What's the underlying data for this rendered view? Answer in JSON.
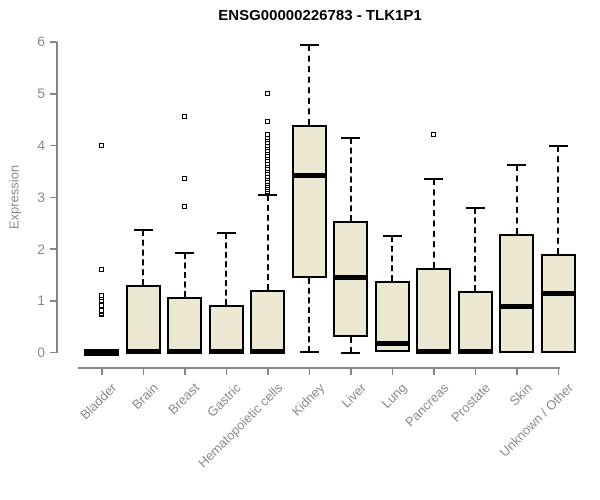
{
  "chart_data": {
    "type": "boxplot",
    "title": "ENSG00000226783 - TLK1P1",
    "ylabel": "Expression",
    "xlabel": "",
    "ylim": [
      0,
      6
    ],
    "yticks": [
      0,
      1,
      2,
      3,
      4,
      5,
      6
    ],
    "grid": false,
    "legend": "none",
    "categories": [
      "Bladder",
      "Brain",
      "Breast",
      "Gastric",
      "Hematopoietic cells",
      "Kidney",
      "Liver",
      "Lung",
      "Pancreas",
      "Prostate",
      "Skin",
      "Unknown / Other"
    ],
    "boxes": [
      {
        "category": "Bladder",
        "whisker_low": 0,
        "q1": 0,
        "median": 0,
        "q3": 0,
        "whisker_high": 0,
        "outliers": [
          0.72,
          0.75,
          0.78,
          0.8,
          0.9,
          1.0,
          1.05,
          1.1,
          1.6,
          4.0
        ]
      },
      {
        "category": "Brain",
        "whisker_low": 0,
        "q1": 0,
        "median": 0.03,
        "q3": 1.3,
        "whisker_high": 2.37,
        "outliers": []
      },
      {
        "category": "Breast",
        "whisker_low": 0,
        "q1": 0,
        "median": 0.03,
        "q3": 1.07,
        "whisker_high": 1.93,
        "outliers": [
          2.82,
          3.35,
          4.55
        ]
      },
      {
        "category": "Gastric",
        "whisker_low": 0,
        "q1": 0,
        "median": 0.03,
        "q3": 0.93,
        "whisker_high": 2.32,
        "outliers": []
      },
      {
        "category": "Hematopoietic cells",
        "whisker_low": 0,
        "q1": 0,
        "median": 0.03,
        "q3": 1.21,
        "whisker_high": 3.05,
        "outliers": [
          3.1,
          3.14,
          3.18,
          3.22,
          3.26,
          3.3,
          3.35,
          3.4,
          3.45,
          3.5,
          3.55,
          3.6,
          3.65,
          3.7,
          3.75,
          3.8,
          3.85,
          3.9,
          3.95,
          4.0,
          4.05,
          4.1,
          4.15,
          4.2,
          4.45,
          5.0
        ]
      },
      {
        "category": "Kidney",
        "whisker_low": 0.02,
        "q1": 1.45,
        "median": 3.43,
        "q3": 4.4,
        "whisker_high": 5.95,
        "outliers": []
      },
      {
        "category": "Liver",
        "whisker_low": 0,
        "q1": 0.31,
        "median": 1.45,
        "q3": 2.55,
        "whisker_high": 4.15,
        "outliers": []
      },
      {
        "category": "Lung",
        "whisker_low": 0.02,
        "q1": 0.02,
        "median": 0.18,
        "q3": 1.38,
        "whisker_high": 2.25,
        "outliers": []
      },
      {
        "category": "Pancreas",
        "whisker_low": 0,
        "q1": 0,
        "median": 0.03,
        "q3": 1.64,
        "whisker_high": 3.35,
        "outliers": [
          4.2
        ]
      },
      {
        "category": "Prostate",
        "whisker_low": 0,
        "q1": 0,
        "median": 0.03,
        "q3": 1.2,
        "whisker_high": 2.8,
        "outliers": []
      },
      {
        "category": "Skin",
        "whisker_low": 0,
        "q1": 0,
        "median": 0.9,
        "q3": 2.3,
        "whisker_high": 3.63,
        "outliers": []
      },
      {
        "category": "Unknown / Other",
        "whisker_low": 0,
        "q1": 0,
        "median": 1.15,
        "q3": 1.9,
        "whisker_high": 4.0,
        "outliers": []
      }
    ],
    "colors": {
      "box_fill": "#EDE8D1",
      "box_border": "#000000",
      "median": "#000000",
      "whisker": "#000000",
      "axis": "#868686",
      "tick_label": "#8a8a8a",
      "title": "#000000",
      "background": "#ffffff"
    }
  }
}
